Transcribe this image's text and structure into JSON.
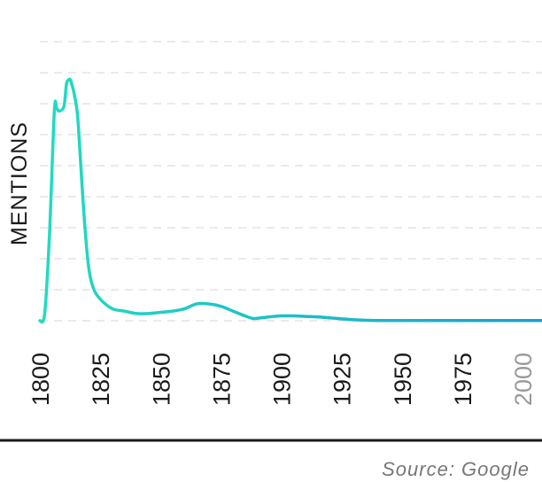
{
  "chart_data": {
    "type": "line",
    "ylabel": "MENTIONS",
    "xlabel": "",
    "title": "",
    "x_ticks": [
      "1800",
      "1825",
      "1850",
      "1875",
      "1900",
      "1925",
      "1950",
      "1975",
      "2000"
    ],
    "muted_ticks": [
      "2000"
    ],
    "xlim": [
      1800,
      2008
    ],
    "ylim": [
      0,
      100
    ],
    "grid": true,
    "legend": "none",
    "line_gradient": [
      "#22dcc0",
      "#1aa0d0"
    ],
    "series": [
      {
        "x": [
          1800,
          1802,
          1804,
          1806,
          1807,
          1808,
          1810,
          1811,
          1812,
          1813,
          1815,
          1816,
          1818,
          1820,
          1822,
          1825,
          1830,
          1835,
          1840,
          1845,
          1850,
          1855,
          1860,
          1865,
          1870,
          1875,
          1880,
          1885,
          1888,
          1890,
          1895,
          1900,
          1905,
          1910,
          1915,
          1920,
          1925,
          1930,
          1935,
          1940,
          1950,
          1960,
          1970,
          1980,
          1990,
          2000,
          2008
        ],
        "y": [
          0,
          3,
          36,
          87,
          88,
          87,
          89,
          98,
          100,
          99,
          90,
          80,
          48,
          24,
          14,
          9,
          5,
          4,
          3,
          3,
          3.5,
          4,
          5,
          7,
          7,
          6,
          4,
          2,
          1,
          1,
          1.6,
          2,
          2,
          1.8,
          1.6,
          1.2,
          0.8,
          0.4,
          0.2,
          0.1,
          0.1,
          0.1,
          0.1,
          0.1,
          0.1,
          0.1,
          0.1
        ]
      }
    ]
  },
  "footer": {
    "source": "Source: Google"
  }
}
